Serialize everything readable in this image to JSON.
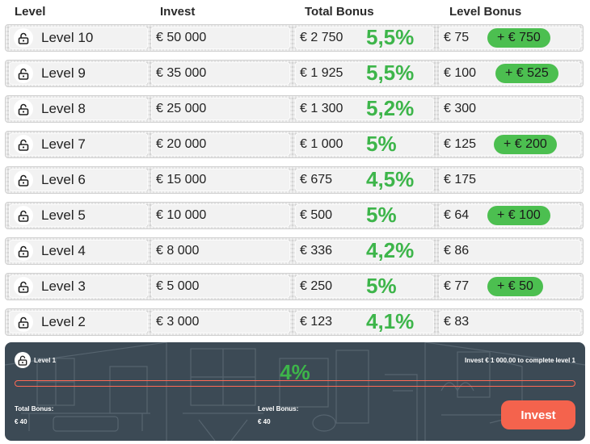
{
  "header": {
    "level": "Level",
    "invest": "Invest",
    "total_bonus": "Total Bonus",
    "level_bonus": "Level Bonus"
  },
  "rows": [
    {
      "level": "Level 10",
      "invest": "€ 50 000",
      "total": "€ 2 750",
      "pct": "5,5%",
      "lvl_bonus": "€ 75",
      "badge": "+ € 750"
    },
    {
      "level": "Level 9",
      "invest": "€ 35 000",
      "total": "€ 1 925",
      "pct": "5,5%",
      "lvl_bonus": "€ 100",
      "badge": "+ € 525"
    },
    {
      "level": "Level 8",
      "invest": "€ 25 000",
      "total": "€ 1 300",
      "pct": "5,2%",
      "lvl_bonus": "€ 300",
      "badge": ""
    },
    {
      "level": "Level 7",
      "invest": "€ 20 000",
      "total": "€ 1 000",
      "pct": "5%",
      "lvl_bonus": "€ 125",
      "badge": "+ € 200"
    },
    {
      "level": "Level 6",
      "invest": "€ 15 000",
      "total": "€ 675",
      "pct": "4,5%",
      "lvl_bonus": "€ 175",
      "badge": ""
    },
    {
      "level": "Level 5",
      "invest": "€ 10 000",
      "total": "€ 500",
      "pct": "5%",
      "lvl_bonus": "€ 64",
      "badge": "+ € 100"
    },
    {
      "level": "Level 4",
      "invest": "€ 8 000",
      "total": "€ 336",
      "pct": "4,2%",
      "lvl_bonus": "€ 86",
      "badge": ""
    },
    {
      "level": "Level 3",
      "invest": "€ 5 000",
      "total": "€ 250",
      "pct": "5%",
      "lvl_bonus": "€ 77",
      "badge": "+ € 50"
    },
    {
      "level": "Level 2",
      "invest": "€ 3 000",
      "total": "€ 123",
      "pct": "4,1%",
      "lvl_bonus": "€ 83",
      "badge": ""
    }
  ],
  "current": {
    "level": "Level 1",
    "status": "Invest € 1 000.00 to complete level 1",
    "pct": "4%",
    "progress_percent": 0,
    "total_bonus_label": "Total Bonus:",
    "total_bonus_value": "€ 40",
    "level_bonus_label": "Level Bonus:",
    "level_bonus_value": "€ 40",
    "invest_button": "Invest"
  },
  "colors": {
    "accent_green": "#3db54a",
    "badge_green": "#4cbf50",
    "cta_orange": "#f4634d",
    "panel_bg": "#3c4a55"
  },
  "icons": {
    "row_lock": "lock-open-icon",
    "current_lock": "lock-open-icon"
  }
}
